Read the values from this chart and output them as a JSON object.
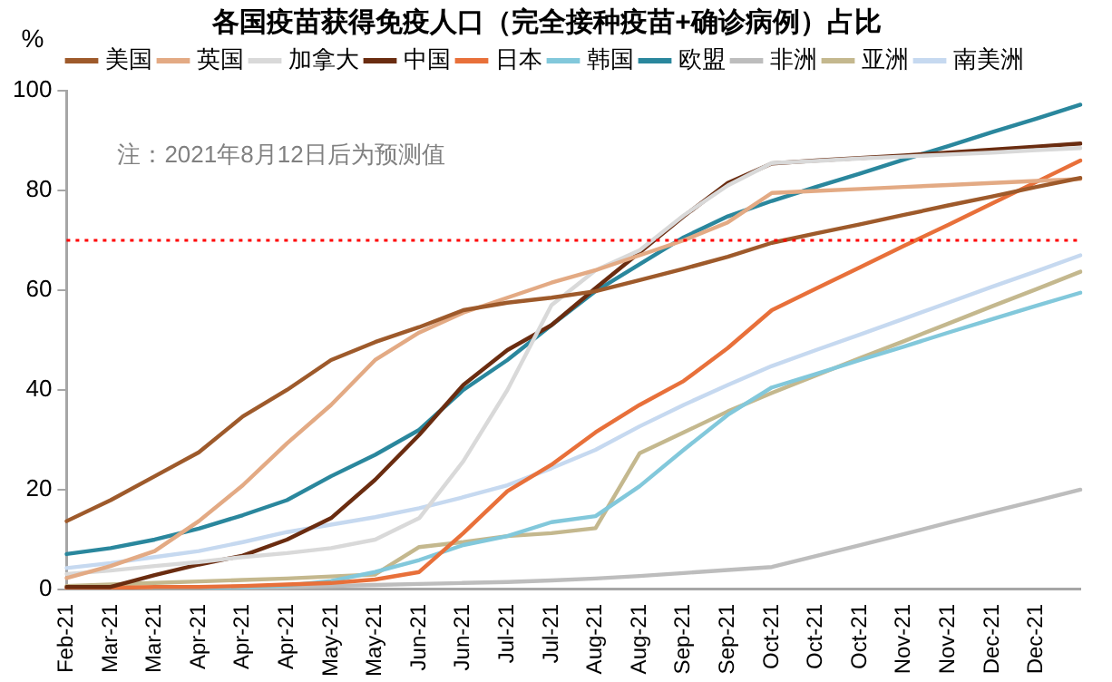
{
  "chart_data": {
    "type": "line",
    "title": "各国疫苗获得免疫人口（完全接种疫苗+确诊病例）占比",
    "ylabel": "%",
    "annotations": [
      "注：2021年8月12日后为预测值"
    ],
    "categories": [
      "Feb-21",
      "Mar-21",
      "Mar-21",
      "Apr-21",
      "Apr-21",
      "Apr-21",
      "May-21",
      "May-21",
      "Jun-21",
      "Jun-21",
      "Jul-21",
      "Jul-21",
      "Aug-21",
      "Aug-21",
      "Sep-21",
      "Sep-21",
      "Oct-21",
      "Oct-21",
      "Oct-21",
      "Nov-21",
      "Nov-21",
      "Dec-21",
      "Dec-21",
      null
    ],
    "ylim": [
      0,
      100
    ],
    "yticks": [
      0,
      20,
      40,
      60,
      80,
      100
    ],
    "grid": false,
    "legend": "top",
    "marker": "none",
    "line_style": "solid",
    "ref_lines": [
      {
        "axis": "y",
        "value": 70,
        "label": null,
        "color": "#ff0000",
        "line_style": "dotted"
      }
    ],
    "series": [
      {
        "name": "美国",
        "color": "#9e5a2b",
        "values": [
          13.7,
          17.9,
          22.7,
          27.5,
          34.7,
          40,
          46,
          49.6,
          52.6,
          56,
          57.5,
          58.5,
          59.8,
          62,
          64.3,
          66.7,
          69.5,
          71.4,
          73.2,
          75.1,
          77,
          78.8,
          80.7,
          82.5
        ]
      },
      {
        "name": "英国",
        "color": "#e3aa84",
        "values": [
          2.3,
          4.7,
          7.7,
          13.7,
          20.9,
          29.3,
          37,
          46,
          51.5,
          55.5,
          58.5,
          61.5,
          64,
          67,
          70,
          73.6,
          79.5,
          79.9,
          80.3,
          80.7,
          81.1,
          81.5,
          81.9,
          82.3
        ]
      },
      {
        "name": "加拿大",
        "color": "#d9d9d9",
        "values": [
          3.1,
          3.8,
          4.7,
          5.5,
          6.5,
          7.3,
          8.3,
          10,
          14.3,
          25.7,
          40,
          57,
          64,
          68,
          75,
          81,
          85.5,
          85.9,
          86.4,
          86.8,
          87.2,
          87.6,
          88.1,
          88.5
        ]
      },
      {
        "name": "中国",
        "color": "#6a2c10",
        "values": [
          0.5,
          0.5,
          2.9,
          5,
          6.8,
          10,
          14.3,
          22,
          31,
          41,
          48,
          53,
          60.4,
          67.6,
          74.8,
          81.5,
          85.4,
          86,
          86.5,
          87,
          87.6,
          88.2,
          88.8,
          89.4
        ]
      },
      {
        "name": "日本",
        "color": "#e8703a",
        "values": [
          0.3,
          0.3,
          0.5,
          0.5,
          0.7,
          1,
          1.3,
          2,
          3.5,
          11.3,
          19.7,
          25,
          31.5,
          37,
          41.8,
          48.4,
          56,
          60.3,
          64.6,
          68.9,
          73.1,
          77.4,
          81.7,
          86
        ]
      },
      {
        "name": "韩国",
        "color": "#82c8db",
        "values": [
          null,
          null,
          0.2,
          0.3,
          0.5,
          0.8,
          1.7,
          3.5,
          5.9,
          8.9,
          10.7,
          13.5,
          14.7,
          20.7,
          28,
          35,
          40.5,
          43.2,
          46,
          48.7,
          51.5,
          54.2,
          56.9,
          59.5
        ]
      },
      {
        "name": "欧盟",
        "color": "#2a879d",
        "values": [
          7.1,
          8.3,
          10,
          12.2,
          14.9,
          17.9,
          22.7,
          27,
          32,
          40,
          46,
          53,
          59.8,
          65.2,
          70.6,
          74.8,
          77.9,
          80.7,
          83.4,
          86.2,
          88.9,
          91.7,
          94.4,
          97.2
        ]
      },
      {
        "name": "非洲",
        "color": "#bdbdbd",
        "values": [
          0,
          0.1,
          0.2,
          0.3,
          0.4,
          0.5,
          0.7,
          0.9,
          1.1,
          1.3,
          1.5,
          1.8,
          2.2,
          2.7,
          3.3,
          3.9,
          4.5,
          6.7,
          8.9,
          11.1,
          13.4,
          15.6,
          17.8,
          20
        ]
      },
      {
        "name": "亚洲",
        "color": "#c4b88e",
        "values": [
          0.7,
          1,
          1.3,
          1.6,
          1.9,
          2.2,
          2.6,
          3,
          8.5,
          9.5,
          10.7,
          11.3,
          12.3,
          27.3,
          31.5,
          35.7,
          39.4,
          42.9,
          46.4,
          49.8,
          53.3,
          56.8,
          60.2,
          63.7
        ]
      },
      {
        "name": "南美洲",
        "color": "#c6d9f0",
        "values": [
          4.3,
          5.3,
          6.5,
          7.7,
          9.5,
          11.5,
          13,
          14.5,
          16.3,
          18.5,
          20.9,
          24.3,
          28,
          32.7,
          37,
          41,
          44.8,
          48,
          51.1,
          54.3,
          57.5,
          60.7,
          63.8,
          67
        ]
      }
    ]
  }
}
